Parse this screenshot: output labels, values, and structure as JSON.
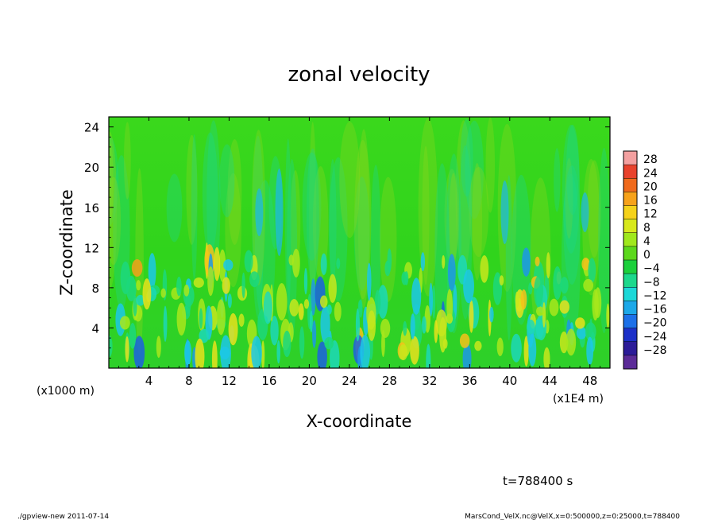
{
  "chart_data": {
    "type": "heatmap",
    "title": "zonal velocity",
    "xlabel": "X-coordinate",
    "ylabel": "Z-coordinate",
    "x_unit_label": "(x1E4 m)",
    "y_unit_label": "(x1000 m)",
    "xlim": [
      0,
      50
    ],
    "ylim": [
      0,
      25
    ],
    "x_ticks": [
      4,
      8,
      12,
      16,
      20,
      24,
      28,
      32,
      36,
      40,
      44,
      48
    ],
    "y_ticks": [
      4,
      8,
      12,
      16,
      20,
      24
    ],
    "colorbar": {
      "labels": [
        "28",
        "24",
        "20",
        "16",
        "12",
        "8",
        "4",
        "0",
        "−4",
        "−8",
        "−12",
        "−16",
        "−20",
        "−24",
        "−28"
      ],
      "colors": [
        "#f3a0a0",
        "#e8422c",
        "#f06a1c",
        "#f7a21a",
        "#f5d21a",
        "#d8e81c",
        "#a0e81c",
        "#5cd81c",
        "#1cd03c",
        "#1cd88c",
        "#1cd8d8",
        "#1ca8e8",
        "#1c70e8",
        "#1c30c8",
        "#2c1c98",
        "#5c2c98"
      ]
    },
    "time_label": "t=788400 s",
    "grid": false,
    "legend": "colorbar-right"
  },
  "footer": {
    "left": "./gpview-new  2011-07-14",
    "right": "MarsCond_VelX.nc@VelX,x=0:500000,z=0:25000,t=788400"
  }
}
